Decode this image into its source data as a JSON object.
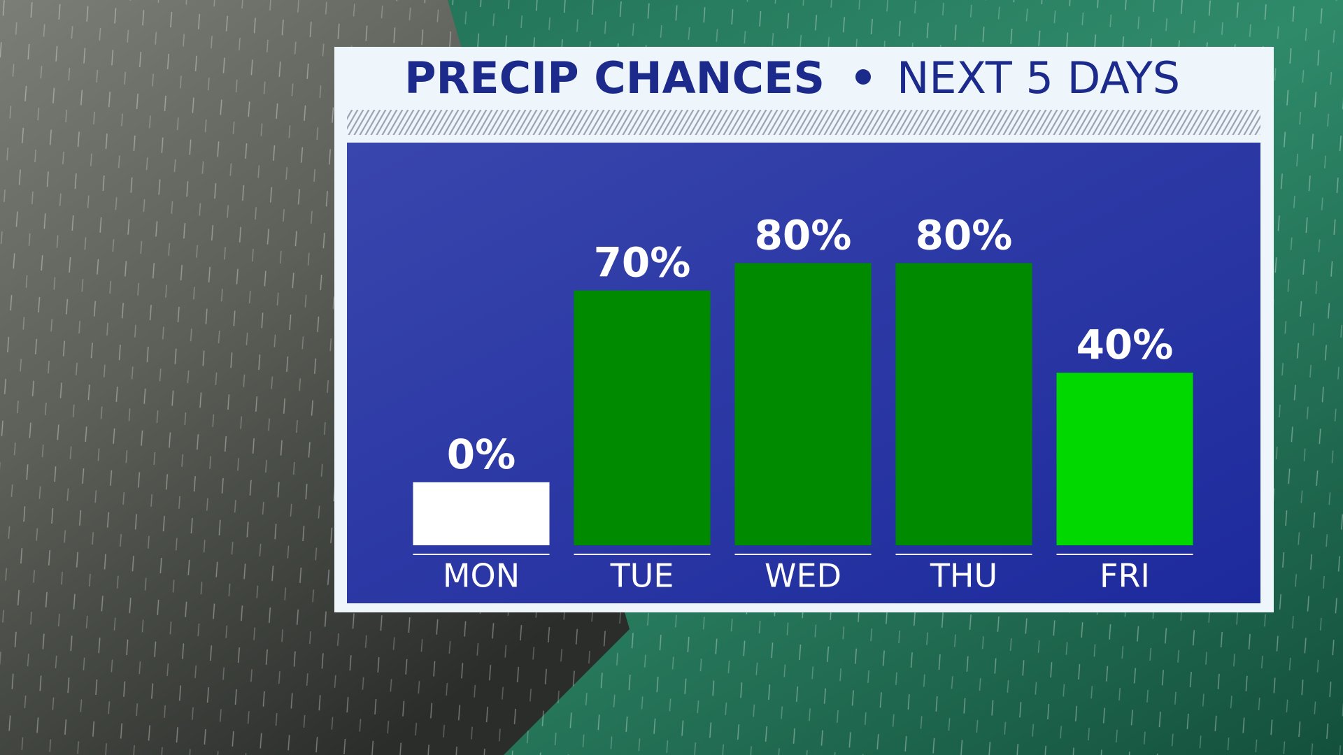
{
  "chart_data": {
    "type": "bar",
    "title": "PRECIP CHANCES",
    "subtitle": "NEXT 5 DAYS",
    "categories": [
      "MON",
      "TUE",
      "WED",
      "THU",
      "FRI"
    ],
    "values": [
      0,
      70,
      80,
      80,
      40
    ],
    "value_labels": [
      "0%",
      "70%",
      "80%",
      "80%",
      "40%"
    ],
    "colors": [
      "#ffffff",
      "#008a00",
      "#008a00",
      "#008a00",
      "#00d800"
    ],
    "ylim": [
      -23,
      100
    ]
  }
}
